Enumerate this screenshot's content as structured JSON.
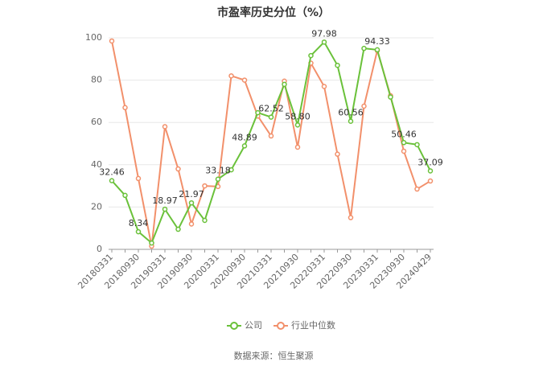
{
  "chart_data": {
    "type": "line",
    "title": "市盈率历史分位（%）",
    "source": "数据来源：恒生聚源",
    "categories": [
      "20180331",
      null,
      "20180930",
      null,
      "20190331",
      null,
      "20190930",
      null,
      "20200331",
      null,
      "20200930",
      null,
      "20210331",
      null,
      "20210930",
      null,
      "20220331",
      null,
      "20220930",
      null,
      "20230331",
      null,
      "20230930",
      null,
      "20240429"
    ],
    "series": [
      {
        "name": "公司",
        "color": "#6ac13a",
        "values": [
          32.46,
          25.5,
          8.34,
          3,
          18.97,
          9.5,
          21.97,
          13.7,
          33.18,
          37.6,
          48.89,
          64.6,
          62.52,
          78,
          58.8,
          91.6,
          97.98,
          87,
          60.56,
          95,
          94.33,
          72,
          50.46,
          49.5,
          37.09
        ],
        "value_labels": [
          "32.46",
          null,
          "8.34",
          null,
          "18.97",
          null,
          "21.97",
          null,
          "33.18",
          null,
          "48.89",
          null,
          "62.52",
          null,
          "58.80",
          null,
          "97.98",
          null,
          "60.56",
          null,
          "94.33",
          null,
          "50.46",
          null,
          "37.09"
        ]
      },
      {
        "name": "行业中位数",
        "color": "#f2906b",
        "values": [
          98.5,
          67,
          33.5,
          1.5,
          58,
          38,
          12,
          30,
          29.7,
          82,
          80,
          63,
          53.6,
          79.5,
          48.3,
          88,
          77,
          45,
          15,
          67.7,
          94,
          72.6,
          46.4,
          28.5,
          32.3
        ]
      }
    ],
    "ylim": [
      0,
      100
    ],
    "yticks": [
      0,
      20,
      40,
      60,
      80,
      100
    ],
    "grid": true
  }
}
